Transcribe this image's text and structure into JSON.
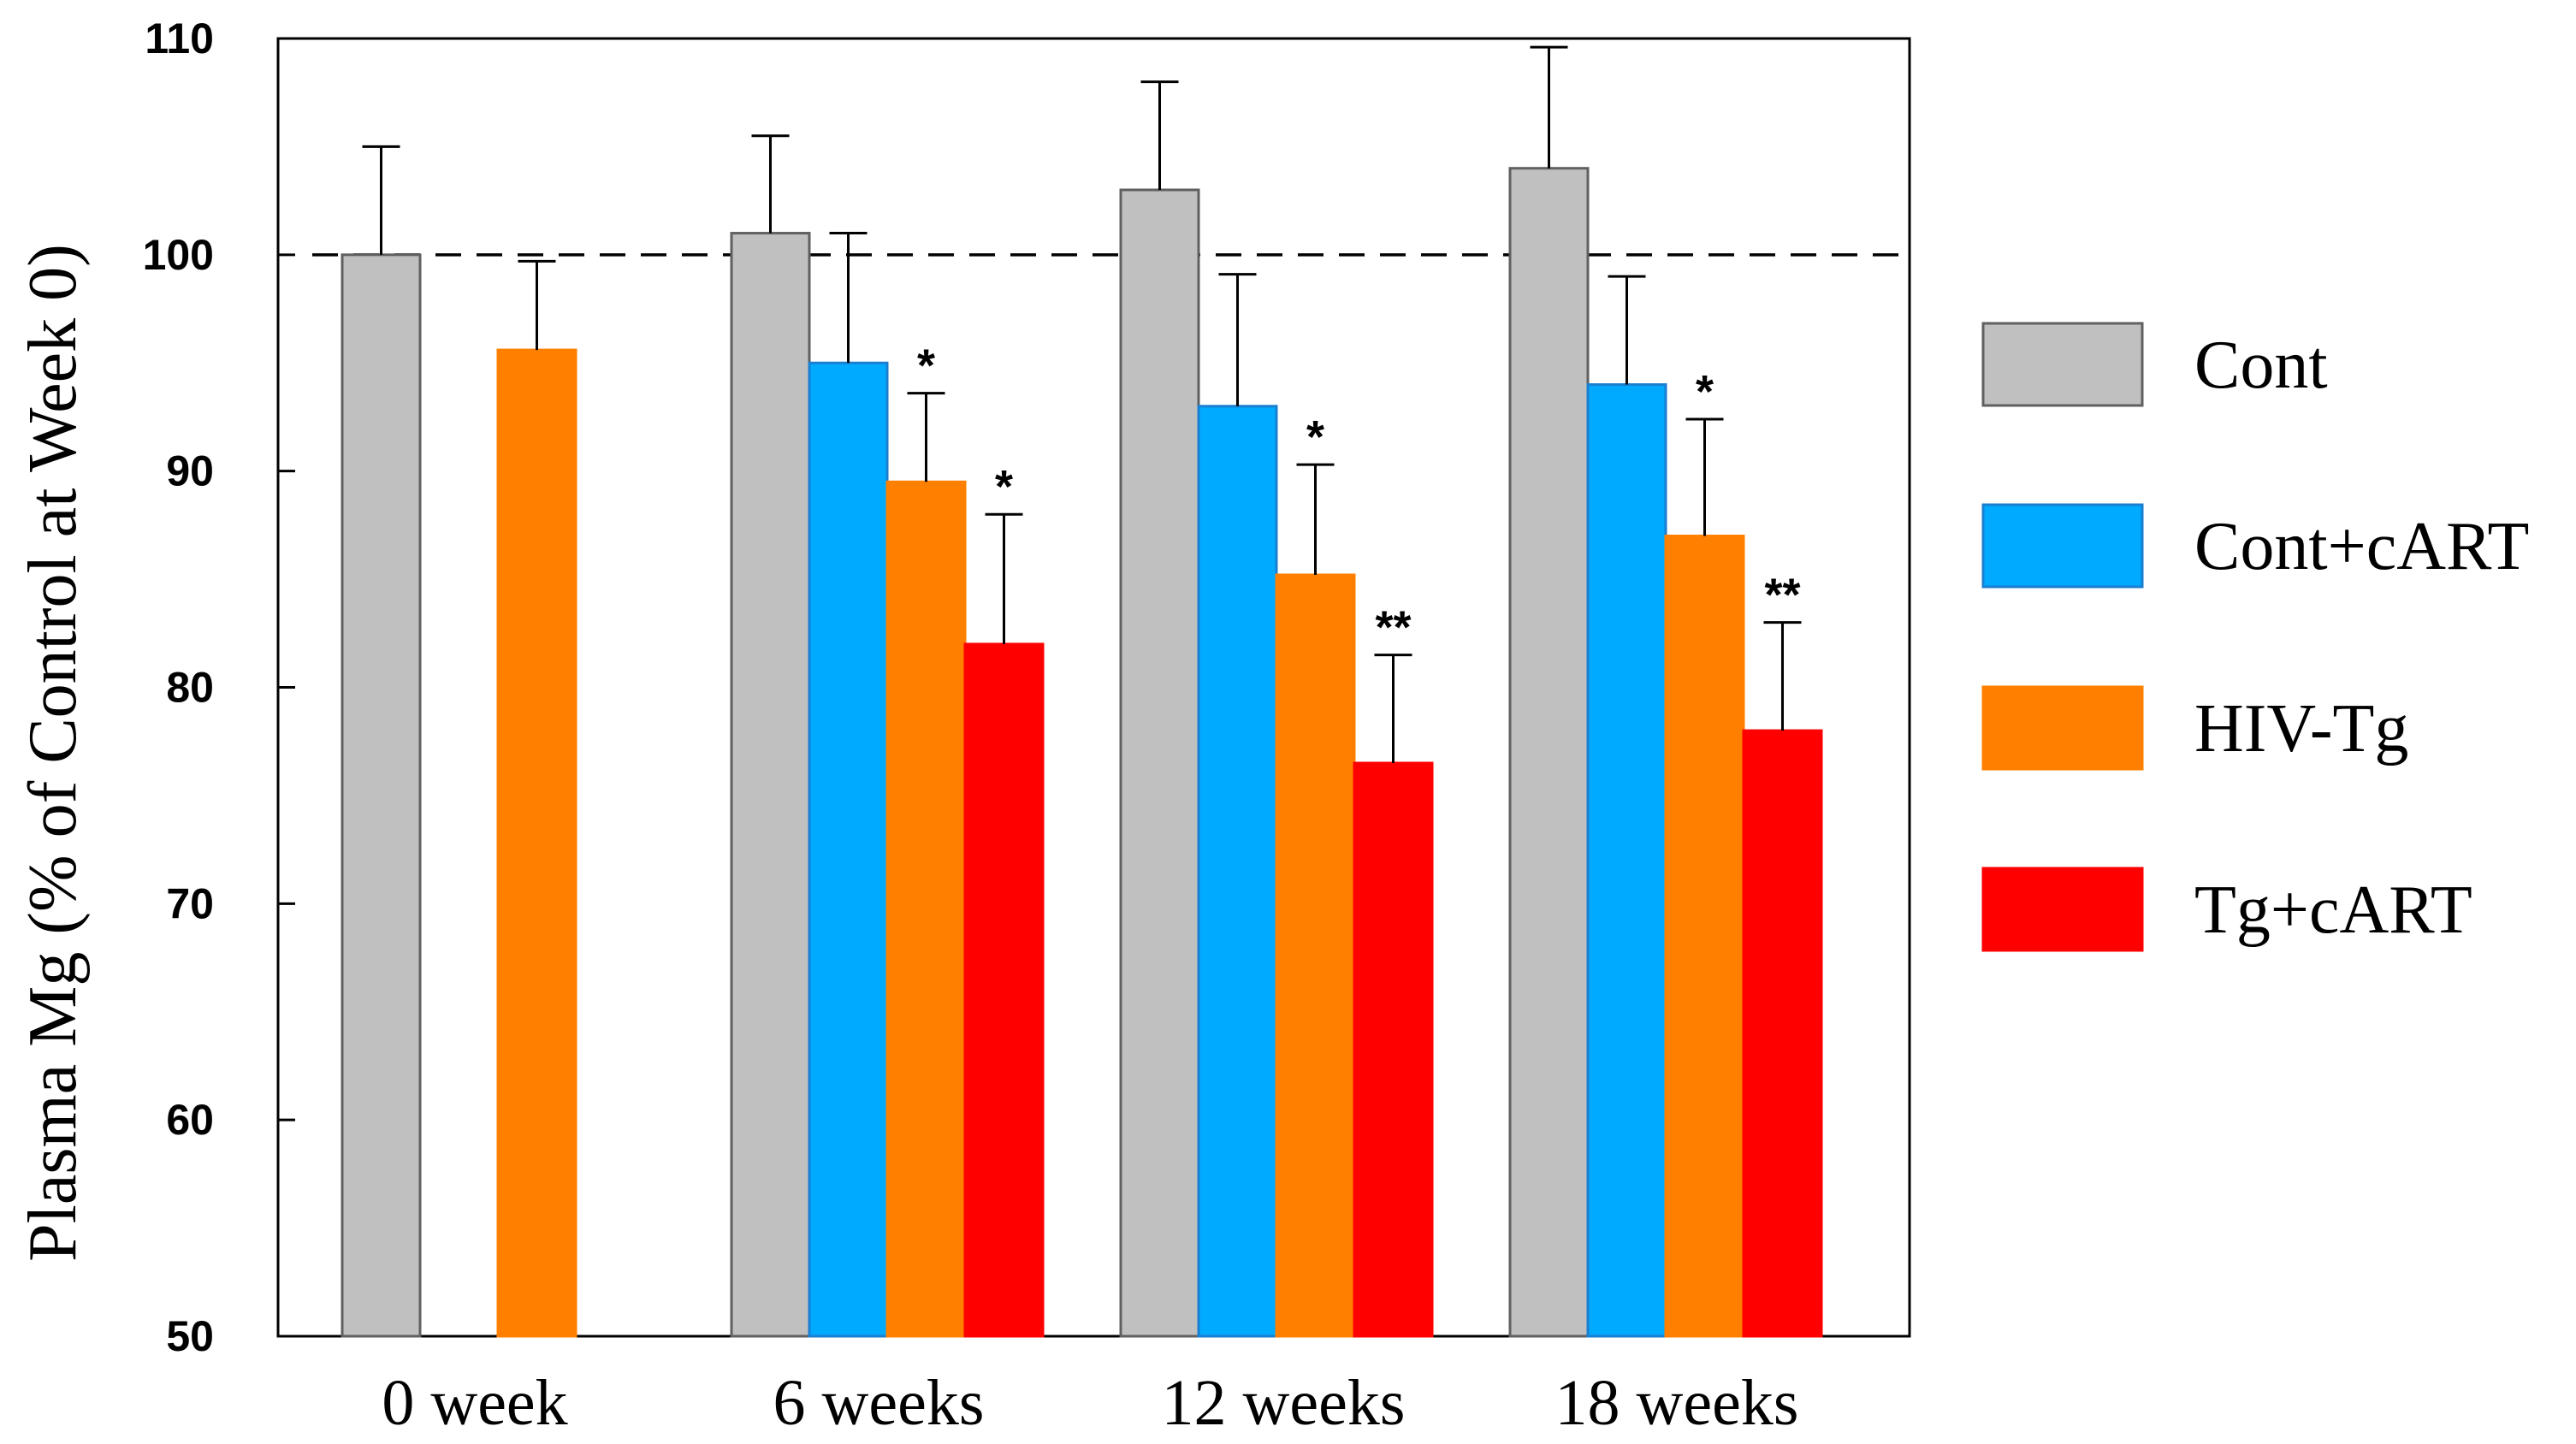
{
  "chart_data": {
    "type": "bar",
    "title": "",
    "xlabel": "",
    "ylabel": "Plasma Mg (% of Control at Week 0)",
    "ylim": [
      50,
      110
    ],
    "yticks": [
      50,
      60,
      70,
      80,
      90,
      100,
      110
    ],
    "reference_line": 100,
    "categories": [
      "0 week",
      "6 weeks",
      "12 weeks",
      "18 weeks"
    ],
    "legend_position": "right",
    "series": [
      {
        "name": "Cont",
        "color": "#c0c0c0",
        "stroke": "#606060",
        "values": [
          100,
          101,
          103,
          104
        ],
        "errors": [
          5,
          4.5,
          5,
          5.6
        ],
        "significance": [
          "",
          "",
          "",
          ""
        ]
      },
      {
        "name": "Cont+cART",
        "color": "#00aaff",
        "stroke": "#1a7fd0",
        "values": [
          null,
          95,
          93,
          94
        ],
        "errors": [
          null,
          6,
          6.1,
          5
        ],
        "significance": [
          "",
          "",
          "",
          ""
        ]
      },
      {
        "name": "HIV-Tg",
        "color": "#ff8000",
        "stroke": "#ff8000",
        "values": [
          95.6,
          89.5,
          85.2,
          87
        ],
        "errors": [
          4.1,
          4.1,
          5.1,
          5.4
        ],
        "significance": [
          "",
          "*",
          "*",
          "*"
        ]
      },
      {
        "name": "Tg+cART",
        "color": "#ff0000",
        "stroke": "#ff0000",
        "values": [
          null,
          82,
          76.5,
          78
        ],
        "errors": [
          null,
          6,
          5,
          5
        ],
        "significance": [
          "",
          "*",
          "**",
          "**"
        ]
      }
    ]
  }
}
